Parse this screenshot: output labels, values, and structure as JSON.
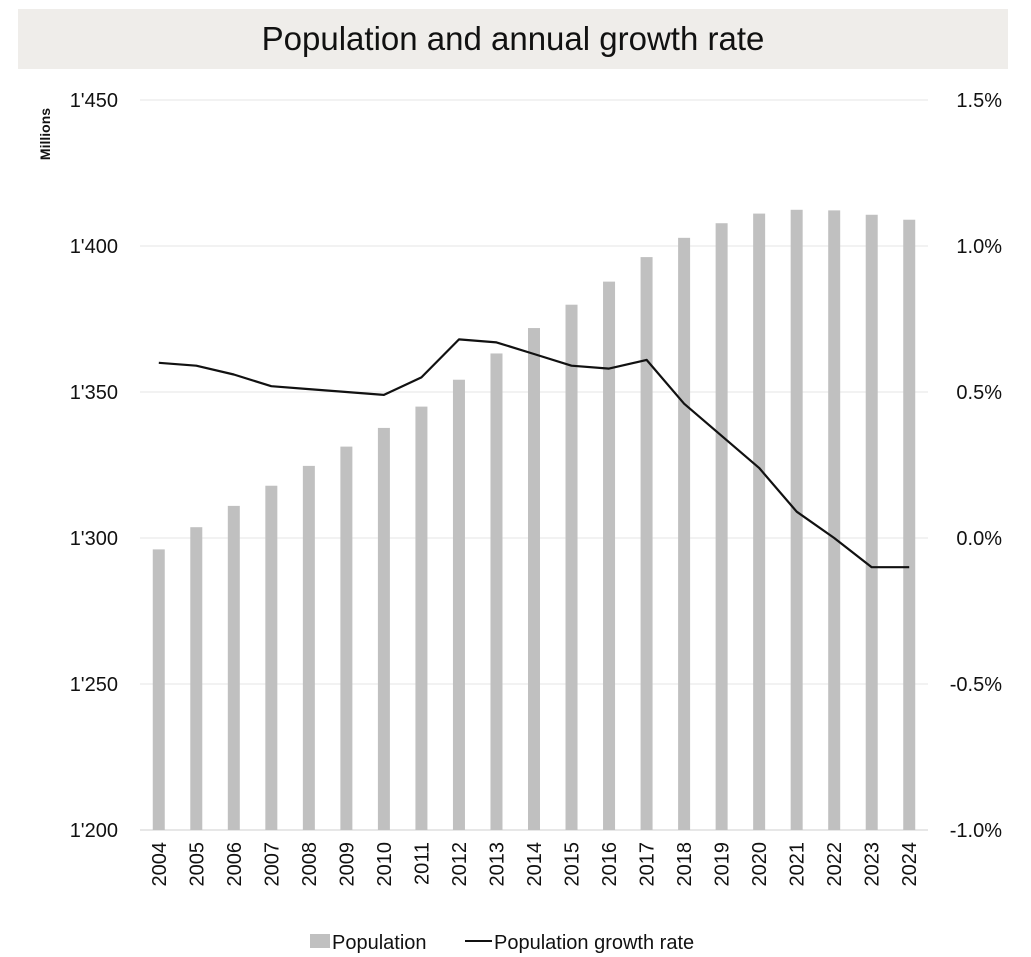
{
  "chart_data": {
    "type": "bar",
    "title": "Population and annual growth rate",
    "y_unit_label": "Millions",
    "categories": [
      "2004",
      "2005",
      "2006",
      "2007",
      "2008",
      "2009",
      "2010",
      "2011",
      "2012",
      "2013",
      "2014",
      "2015",
      "2016",
      "2017",
      "2018",
      "2019",
      "2020",
      "2021",
      "2022",
      "2023",
      "2024"
    ],
    "series": [
      {
        "name": "Population",
        "type": "bar",
        "axis": "left",
        "color": "#c0c0c0",
        "values": [
          1296.1,
          1303.7,
          1311.0,
          1317.9,
          1324.7,
          1331.3,
          1337.7,
          1345.0,
          1354.2,
          1363.2,
          1371.9,
          1379.9,
          1387.8,
          1396.2,
          1402.8,
          1407.8,
          1411.1,
          1412.4,
          1412.2,
          1410.7,
          1409.0
        ]
      },
      {
        "name": "Population growth rate",
        "type": "line",
        "axis": "right",
        "color": "#111111",
        "values": [
          0.6,
          0.59,
          0.56,
          0.52,
          0.51,
          0.5,
          0.49,
          0.55,
          0.68,
          0.67,
          0.63,
          0.59,
          0.58,
          0.61,
          0.46,
          0.35,
          0.24,
          0.09,
          0.0,
          -0.1,
          -0.1
        ]
      }
    ],
    "y_left": {
      "min": 1200,
      "max": 1450,
      "ticks": [
        1450,
        1400,
        1350,
        1300,
        1250,
        1200
      ],
      "tick_labels": [
        "1'450",
        "1'400",
        "1'350",
        "1'300",
        "1'250",
        "1'200"
      ]
    },
    "y_right": {
      "min": -1.0,
      "max": 1.5,
      "ticks": [
        1.5,
        1.0,
        0.5,
        0.0,
        -0.5,
        -1.0
      ],
      "tick_labels": [
        "1.5%",
        "1.0%",
        "0.5%",
        "0.0%",
        "-0.5%",
        "-1.0%"
      ]
    },
    "grid": true,
    "legend_position": "bottom"
  }
}
